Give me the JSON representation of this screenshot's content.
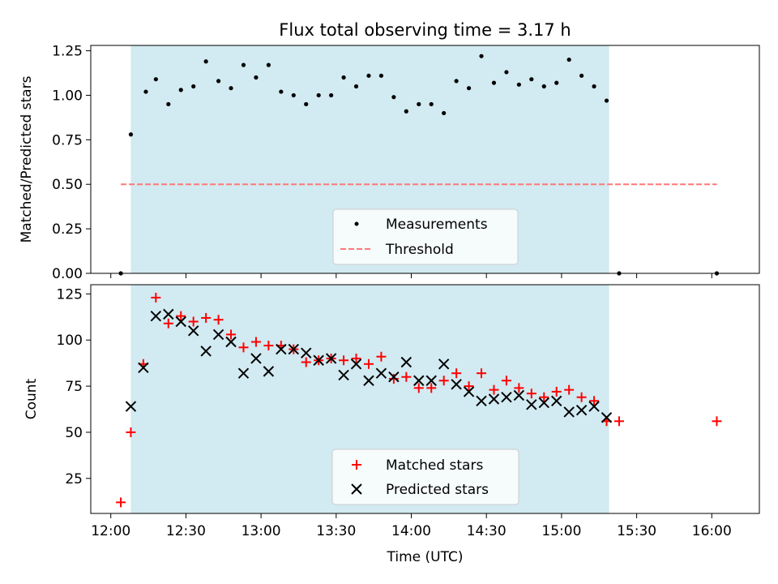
{
  "chart_data": [
    {
      "type": "scatter",
      "title": "Flux total observing time = 3.17 h",
      "xlabel": "",
      "ylabel": "Matched/Predicted stars",
      "xlim": [
        "11:52",
        "16:19"
      ],
      "ylim": [
        0,
        1.28
      ],
      "yticks": [
        "0.00",
        "0.25",
        "0.50",
        "0.75",
        "1.00",
        "1.25"
      ],
      "shaded_interval": [
        "12:08",
        "15:19"
      ],
      "legend_position": "lower-center",
      "series": [
        {
          "name": "Measurements",
          "marker": "dot",
          "color": "#000000",
          "points": [
            [
              "12:04",
              0.0
            ],
            [
              "12:08",
              0.78
            ],
            [
              "12:14",
              1.02
            ],
            [
              "12:18",
              1.09
            ],
            [
              "12:23",
              0.95
            ],
            [
              "12:28",
              1.03
            ],
            [
              "12:33",
              1.05
            ],
            [
              "12:38",
              1.19
            ],
            [
              "12:43",
              1.08
            ],
            [
              "12:48",
              1.04
            ],
            [
              "12:53",
              1.17
            ],
            [
              "12:58",
              1.1
            ],
            [
              "13:03",
              1.17
            ],
            [
              "13:08",
              1.02
            ],
            [
              "13:13",
              1.0
            ],
            [
              "13:18",
              0.95
            ],
            [
              "13:23",
              1.0
            ],
            [
              "13:28",
              1.0
            ],
            [
              "13:33",
              1.1
            ],
            [
              "13:38",
              1.05
            ],
            [
              "13:43",
              1.11
            ],
            [
              "13:48",
              1.11
            ],
            [
              "13:53",
              0.99
            ],
            [
              "13:58",
              0.91
            ],
            [
              "14:03",
              0.95
            ],
            [
              "14:08",
              0.95
            ],
            [
              "14:13",
              0.9
            ],
            [
              "14:18",
              1.08
            ],
            [
              "14:23",
              1.04
            ],
            [
              "14:28",
              1.22
            ],
            [
              "14:33",
              1.07
            ],
            [
              "14:38",
              1.13
            ],
            [
              "14:43",
              1.06
            ],
            [
              "14:48",
              1.09
            ],
            [
              "14:53",
              1.05
            ],
            [
              "14:58",
              1.07
            ],
            [
              "15:03",
              1.2
            ],
            [
              "15:08",
              1.11
            ],
            [
              "15:13",
              1.05
            ],
            [
              "15:18",
              0.97
            ],
            [
              "15:23",
              0.0
            ],
            [
              "16:02",
              0.0
            ]
          ]
        },
        {
          "name": "Threshold",
          "line_style": "dashed",
          "color": "#ff7777",
          "points": [
            [
              "12:04",
              0.5
            ],
            [
              "16:02",
              0.5
            ]
          ]
        }
      ]
    },
    {
      "type": "scatter",
      "title": "",
      "xlabel": "Time (UTC)",
      "ylabel": "Count",
      "xlim": [
        "11:52",
        "16:19"
      ],
      "ylim": [
        6,
        130
      ],
      "yticks": [
        "25",
        "50",
        "75",
        "100",
        "125"
      ],
      "xticks": [
        "12:00",
        "12:30",
        "13:00",
        "13:30",
        "14:00",
        "14:30",
        "15:00",
        "15:30",
        "16:00"
      ],
      "shaded_interval": [
        "12:08",
        "15:19"
      ],
      "legend_position": "lower-center",
      "series": [
        {
          "name": "Matched stars",
          "marker": "plus",
          "color": "#ff0000",
          "points": [
            [
              "12:04",
              12
            ],
            [
              "12:08",
              50
            ],
            [
              "12:13",
              87
            ],
            [
              "12:18",
              123
            ],
            [
              "12:23",
              109
            ],
            [
              "12:28",
              113
            ],
            [
              "12:33",
              110
            ],
            [
              "12:38",
              112
            ],
            [
              "12:43",
              111
            ],
            [
              "12:48",
              103
            ],
            [
              "12:53",
              96
            ],
            [
              "12:58",
              99
            ],
            [
              "13:03",
              97
            ],
            [
              "13:08",
              97
            ],
            [
              "13:13",
              95
            ],
            [
              "13:18",
              88
            ],
            [
              "13:23",
              89
            ],
            [
              "13:28",
              90
            ],
            [
              "13:33",
              89
            ],
            [
              "13:38",
              90
            ],
            [
              "13:43",
              87
            ],
            [
              "13:48",
              91
            ],
            [
              "13:53",
              79
            ],
            [
              "13:58",
              80
            ],
            [
              "14:03",
              74
            ],
            [
              "14:08",
              74
            ],
            [
              "14:13",
              78
            ],
            [
              "14:18",
              82
            ],
            [
              "14:23",
              75
            ],
            [
              "14:28",
              82
            ],
            [
              "14:33",
              73
            ],
            [
              "14:38",
              78
            ],
            [
              "14:43",
              74
            ],
            [
              "14:48",
              71
            ],
            [
              "14:53",
              69
            ],
            [
              "14:58",
              72
            ],
            [
              "15:03",
              73
            ],
            [
              "15:08",
              69
            ],
            [
              "15:13",
              67
            ],
            [
              "15:18",
              56
            ],
            [
              "15:23",
              56
            ],
            [
              "16:02",
              56
            ]
          ]
        },
        {
          "name": "Predicted stars",
          "marker": "x",
          "color": "#000000",
          "points": [
            [
              "12:08",
              64
            ],
            [
              "12:13",
              85
            ],
            [
              "12:18",
              113
            ],
            [
              "12:23",
              114
            ],
            [
              "12:28",
              110
            ],
            [
              "12:33",
              105
            ],
            [
              "12:38",
              94
            ],
            [
              "12:43",
              103
            ],
            [
              "12:48",
              99
            ],
            [
              "12:53",
              82
            ],
            [
              "12:58",
              90
            ],
            [
              "13:03",
              83
            ],
            [
              "13:08",
              95
            ],
            [
              "13:13",
              95
            ],
            [
              "13:18",
              93
            ],
            [
              "13:23",
              89
            ],
            [
              "13:28",
              90
            ],
            [
              "13:33",
              81
            ],
            [
              "13:38",
              87
            ],
            [
              "13:43",
              78
            ],
            [
              "13:48",
              82
            ],
            [
              "13:53",
              80
            ],
            [
              "13:58",
              88
            ],
            [
              "14:03",
              78
            ],
            [
              "14:08",
              78
            ],
            [
              "14:13",
              87
            ],
            [
              "14:18",
              76
            ],
            [
              "14:23",
              72
            ],
            [
              "14:28",
              67
            ],
            [
              "14:33",
              68
            ],
            [
              "14:38",
              69
            ],
            [
              "14:43",
              70
            ],
            [
              "14:48",
              65
            ],
            [
              "14:53",
              66
            ],
            [
              "14:58",
              67
            ],
            [
              "15:03",
              61
            ],
            [
              "15:08",
              62
            ],
            [
              "15:13",
              64
            ],
            [
              "15:18",
              58
            ]
          ]
        }
      ]
    }
  ],
  "colors": {
    "shaded_band": "#add8e6",
    "axis": "#000000",
    "legend_border": "#cccccc"
  }
}
